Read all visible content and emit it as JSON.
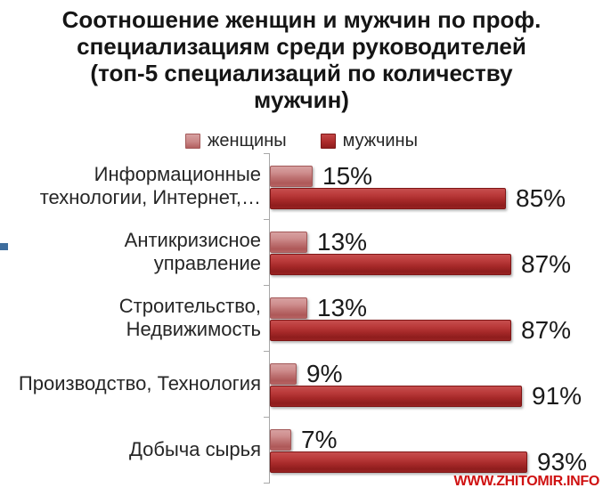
{
  "title": {
    "text": "Соотношение женщин и мужчин по проф.\nспециализациям среди руководителей\n(топ-5 специализаций по количеству\nмужчин)"
  },
  "legend": {
    "items": [
      {
        "label": "женщины",
        "color": "#c98585"
      },
      {
        "label": "мужчины",
        "color": "#a52828"
      }
    ]
  },
  "watermark": {
    "text": "WWW.ZHITOMIR.INFO",
    "color": "#cf1111"
  },
  "decorations": {
    "blue_fragment_color": "#3e6d9d"
  },
  "chart_data": {
    "type": "bar",
    "orientation": "horizontal",
    "title": "Соотношение женщин и мужчин по проф. специализациям среди руководителей (топ-5 специализаций по количеству мужчин)",
    "categories": [
      "Информационные\nтехнологии, Интернет,…",
      "Антикризисное\nуправление",
      "Строительство,\nНедвижимость",
      "Производство, Технология",
      "Добыча сырья"
    ],
    "series": [
      {
        "name": "женщины",
        "color": "#c98585",
        "values": [
          15,
          13,
          13,
          9,
          7
        ],
        "labels": [
          "15%",
          "13%",
          "13%",
          "9%",
          "7%"
        ]
      },
      {
        "name": "мужчины",
        "color": "#a52828",
        "values": [
          85,
          87,
          87,
          91,
          93
        ],
        "labels": [
          "85%",
          "87%",
          "87%",
          "91%",
          "93%"
        ]
      }
    ],
    "value_axis_range": [
      0,
      100
    ],
    "value_labels_visible": true,
    "gridlines": false,
    "legend_position": "top"
  }
}
